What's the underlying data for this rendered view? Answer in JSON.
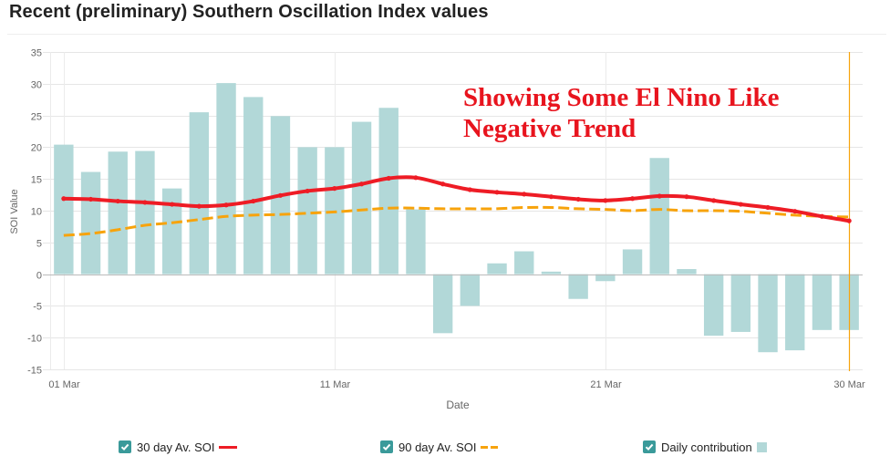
{
  "page": {
    "title": "Recent (preliminary) Southern Oscillation Index values"
  },
  "annotation": {
    "line1": "Showing Some El Nino Like",
    "line2": "Negative Trend",
    "color": "#e8141e"
  },
  "legend": [
    {
      "label": "30 day Av. SOI",
      "checked": true,
      "style": "solid",
      "color": "#ee1c25"
    },
    {
      "label": "90 day Av. SOI",
      "checked": true,
      "style": "dashed",
      "color": "#f7a30c"
    },
    {
      "label": "Daily contribution",
      "checked": true,
      "style": "box",
      "color": "#b2d8d8"
    }
  ],
  "chart_data": {
    "type": "bar",
    "title": "Recent (preliminary) Southern Oscillation Index values",
    "xlabel": "Date",
    "ylabel": "SOI Value",
    "ylim": [
      -15,
      35
    ],
    "yticks": [
      35,
      30,
      25,
      20,
      15,
      10,
      5,
      0,
      -5,
      -10,
      -15
    ],
    "xtick_labels": [
      {
        "day": 1,
        "label": "01 Mar"
      },
      {
        "day": 11,
        "label": "11 Mar"
      },
      {
        "day": 21,
        "label": "21 Mar"
      },
      {
        "day": 30,
        "label": "30 Mar"
      }
    ],
    "grid": true,
    "legend_position": "bottom",
    "highlight_day": 30,
    "highlight_color": "#f7a30c",
    "categories": [
      1,
      2,
      3,
      4,
      5,
      6,
      7,
      8,
      9,
      10,
      11,
      12,
      13,
      14,
      15,
      16,
      17,
      18,
      19,
      20,
      21,
      22,
      23,
      24,
      25,
      26,
      27,
      28,
      29,
      30
    ],
    "series": [
      {
        "name": "Daily contribution",
        "type": "bar",
        "color": "#b2d8d8",
        "values": [
          20.4,
          16.1,
          19.3,
          19.4,
          13.5,
          25.5,
          30.1,
          27.9,
          24.9,
          20.0,
          20.0,
          24.0,
          26.2,
          10.2,
          -9.3,
          -5.0,
          1.7,
          3.6,
          0.4,
          -3.9,
          -1.1,
          3.9,
          18.3,
          0.8,
          -9.7,
          -9.1,
          -12.3,
          -12.0,
          -8.8,
          -8.8
        ]
      },
      {
        "name": "30 day Av. SOI",
        "type": "line",
        "style": "solid",
        "color": "#ee1c25",
        "values": [
          11.9,
          11.8,
          11.5,
          11.3,
          11.0,
          10.7,
          10.9,
          11.5,
          12.4,
          13.1,
          13.5,
          14.2,
          15.1,
          15.2,
          14.2,
          13.3,
          12.9,
          12.6,
          12.2,
          11.8,
          11.6,
          11.9,
          12.3,
          12.2,
          11.6,
          11.0,
          10.5,
          9.9,
          9.1,
          8.4
        ]
      },
      {
        "name": "90 day Av. SOI",
        "type": "line",
        "style": "dashed",
        "color": "#f7a30c",
        "values": [
          6.1,
          6.4,
          7.0,
          7.7,
          8.1,
          8.6,
          9.1,
          9.3,
          9.4,
          9.6,
          9.8,
          10.1,
          10.4,
          10.4,
          10.3,
          10.3,
          10.3,
          10.5,
          10.5,
          10.3,
          10.2,
          10.0,
          10.2,
          10.0,
          10.0,
          9.9,
          9.6,
          9.3,
          9.1,
          9.0
        ]
      }
    ]
  }
}
